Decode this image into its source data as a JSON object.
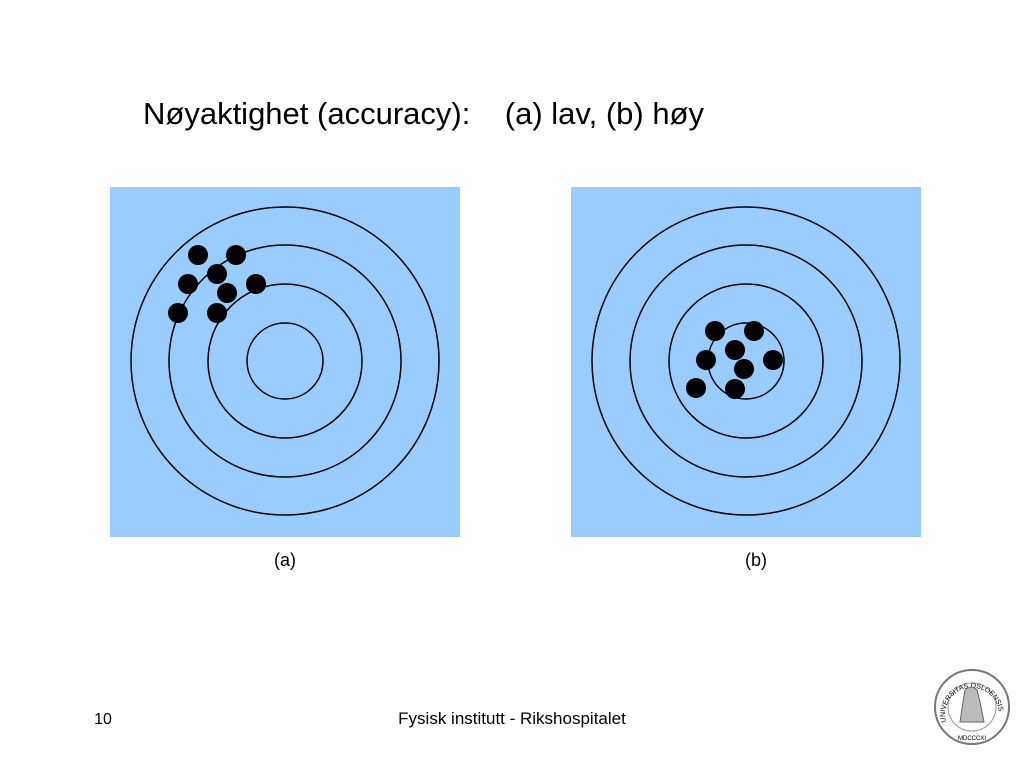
{
  "title": "Nøyaktighet (accuracy):    (a) lav, (b) høy",
  "panels": [
    {
      "label": "(a)"
    },
    {
      "label": "(b)"
    }
  ],
  "footer": {
    "page": "10",
    "text": "Fysisk institutt - Rikshospitalet"
  },
  "logo": {
    "ring": "UNIVERSITAS OSLOENSIS",
    "year": "MDCCCXI"
  }
}
